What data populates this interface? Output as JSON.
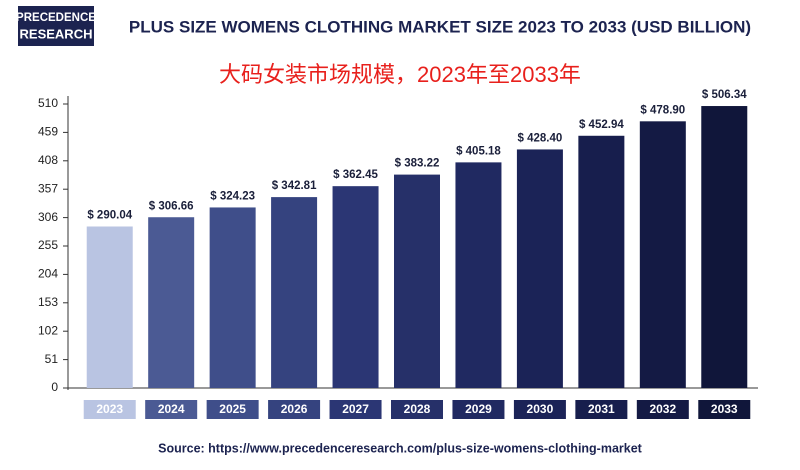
{
  "logo": {
    "line1": "PRECEDENCE",
    "line2": "RESEARCH"
  },
  "chart_data": {
    "type": "bar",
    "title": "PLUS SIZE WOMENS CLOTHING MARKET SIZE 2023 TO 2033 (USD BILLION)",
    "subtitle": "大码女装市场规模，2023年至2033年",
    "source": "Source: https://www.precedenceresearch.com/plus-size-womens-clothing-market",
    "categories": [
      "2023",
      "2024",
      "2025",
      "2026",
      "2027",
      "2028",
      "2029",
      "2030",
      "2031",
      "2032",
      "2033"
    ],
    "values": [
      290.04,
      306.66,
      324.23,
      342.81,
      362.45,
      383.22,
      405.18,
      428.4,
      452.94,
      478.9,
      506.34
    ],
    "value_labels": [
      "$ 290.04",
      "$ 306.66",
      "$ 324.23",
      "$ 342.81",
      "$ 362.45",
      "$ 383.22",
      "$ 405.18",
      "$ 428.40",
      "$ 452.94",
      "$ 478.90",
      "$ 506.34"
    ],
    "colors": [
      "#b9c4e2",
      "#4b5a94",
      "#3f4e8a",
      "#35437f",
      "#2b3674",
      "#263069",
      "#202961",
      "#1b2357",
      "#171e4d",
      "#141a44",
      "#10163a"
    ],
    "ylim": [
      0,
      510
    ],
    "yticks": [
      0,
      51,
      102,
      153,
      204,
      255,
      306,
      357,
      408,
      459,
      510
    ],
    "grid": false
  }
}
